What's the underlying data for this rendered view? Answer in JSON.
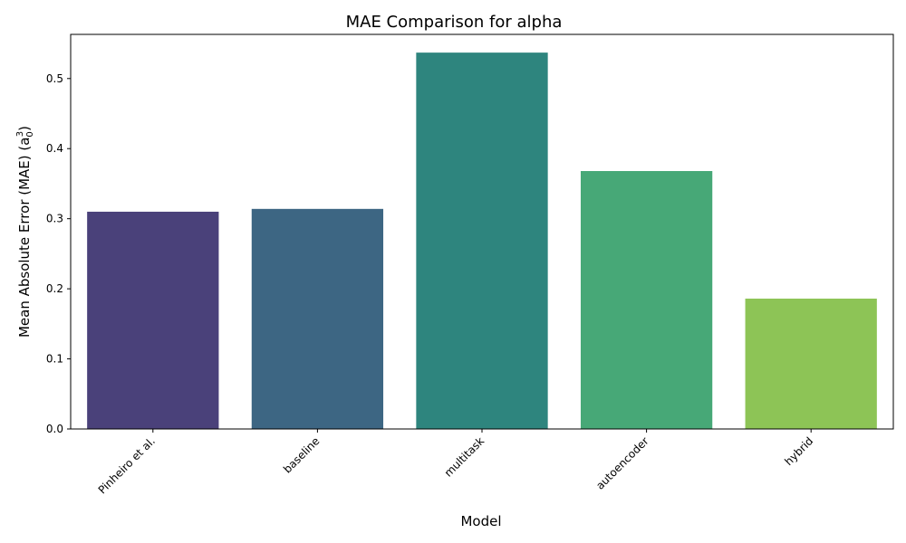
{
  "chart_data": {
    "type": "bar",
    "title": "MAE Comparison for alpha",
    "xlabel": "Model",
    "ylabel": {
      "prefix": "Mean Absolute Error (MAE) (a",
      "sub": "0",
      "sup": "3",
      "suffix": ")"
    },
    "categories": [
      "Pinheiro et al.",
      "baseline",
      "multitask",
      "autoencoder",
      "hybrid"
    ],
    "values": [
      0.31,
      0.314,
      0.537,
      0.368,
      0.186
    ],
    "colors": [
      "#4a417a",
      "#3d6683",
      "#2e857e",
      "#47a877",
      "#8dc456"
    ],
    "ylim": [
      0,
      0.563
    ],
    "yticks": [
      "0.0",
      "0.1",
      "0.2",
      "0.3",
      "0.4",
      "0.5"
    ],
    "grid": false,
    "legend": "none"
  }
}
